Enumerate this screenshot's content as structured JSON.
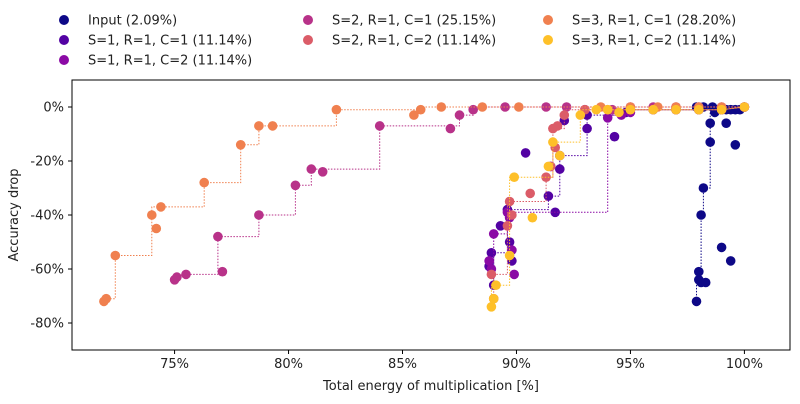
{
  "chart_data": {
    "type": "scatter",
    "xlabel": "Total energy of multiplication [%]",
    "ylabel": "Accuracy drop",
    "xlim": [
      70.5,
      102
    ],
    "ylim": [
      -90,
      10
    ],
    "x_ticks": [
      75,
      80,
      85,
      90,
      95,
      100
    ],
    "x_tick_labels": [
      "75%",
      "80%",
      "85%",
      "90%",
      "95%",
      "100%"
    ],
    "y_ticks": [
      0,
      -20,
      -40,
      -60,
      -80
    ],
    "y_tick_labels": [
      "0%",
      "-20%",
      "-40%",
      "-60%",
      "-80%"
    ],
    "grid": false,
    "legend_position": "top",
    "series": [
      {
        "name": "Input (2.09%)",
        "color": "#0d0887",
        "points": [
          [
            97.9,
            -72
          ],
          [
            98.0,
            -64
          ],
          [
            98.1,
            -65
          ],
          [
            98.3,
            -65
          ],
          [
            98.0,
            -61
          ],
          [
            98.1,
            -40
          ],
          [
            98.2,
            -30
          ],
          [
            98.5,
            -13
          ],
          [
            98.5,
            -6
          ],
          [
            99.0,
            -52
          ],
          [
            99.4,
            -57
          ],
          [
            99.2,
            -6
          ],
          [
            99.6,
            -14
          ],
          [
            98.7,
            -2
          ],
          [
            98.8,
            -1
          ],
          [
            99.0,
            -1
          ],
          [
            99.2,
            -1
          ],
          [
            99.4,
            -1
          ],
          [
            99.6,
            -1
          ],
          [
            99.8,
            -1
          ],
          [
            100.0,
            0
          ],
          [
            97.9,
            0
          ],
          [
            98.2,
            0
          ],
          [
            98.6,
            0
          ]
        ],
        "frontier": [
          [
            97.9,
            -72
          ],
          [
            97.9,
            -61
          ],
          [
            98.1,
            -61
          ],
          [
            98.1,
            -40
          ],
          [
            98.2,
            -40
          ],
          [
            98.2,
            -30
          ],
          [
            98.5,
            -30
          ],
          [
            98.5,
            -2
          ],
          [
            99.8,
            -2
          ],
          [
            99.8,
            0
          ],
          [
            100.0,
            0
          ]
        ]
      },
      {
        "name": "S=1, R=1, C=1 (11.14%)",
        "color": "#5302a3",
        "points": [
          [
            88.8,
            -59
          ],
          [
            88.9,
            -54
          ],
          [
            89.0,
            -66
          ],
          [
            89.3,
            -44
          ],
          [
            89.6,
            -38
          ],
          [
            89.7,
            -40
          ],
          [
            89.7,
            -50
          ],
          [
            89.8,
            -57
          ],
          [
            90.4,
            -17
          ],
          [
            91.4,
            -33
          ],
          [
            91.5,
            -22
          ],
          [
            91.7,
            -39
          ],
          [
            91.9,
            -23
          ],
          [
            91.9,
            -18
          ],
          [
            92.1,
            -5
          ],
          [
            93.1,
            -8
          ],
          [
            93.1,
            -3
          ],
          [
            94.3,
            -11
          ],
          [
            94.8,
            -2
          ],
          [
            95.0,
            -1
          ],
          [
            96.0,
            -1
          ],
          [
            97.0,
            -1
          ],
          [
            98.0,
            -1
          ],
          [
            99.0,
            -1
          ],
          [
            100.0,
            0
          ]
        ],
        "frontier": [
          [
            89.0,
            -66
          ],
          [
            89.0,
            -54
          ],
          [
            89.6,
            -54
          ],
          [
            89.6,
            -38
          ],
          [
            91.4,
            -38
          ],
          [
            91.4,
            -33
          ],
          [
            91.9,
            -33
          ],
          [
            91.9,
            -18
          ],
          [
            93.1,
            -18
          ],
          [
            93.1,
            -3
          ],
          [
            94.8,
            -3
          ],
          [
            94.8,
            -1
          ],
          [
            99.0,
            -1
          ],
          [
            100.0,
            0
          ]
        ]
      },
      {
        "name": "S=1, R=1, C=2 (11.14%)",
        "color": "#8b0aa5",
        "points": [
          [
            88.8,
            -57
          ],
          [
            88.9,
            -60
          ],
          [
            89.0,
            -47
          ],
          [
            89.6,
            -39
          ],
          [
            89.7,
            -41
          ],
          [
            89.8,
            -53
          ],
          [
            89.9,
            -62
          ],
          [
            94.0,
            -4
          ],
          [
            94.6,
            -3
          ],
          [
            95.0,
            -2
          ],
          [
            96.0,
            -1
          ],
          [
            97.0,
            -1
          ],
          [
            98.0,
            -1
          ],
          [
            99.0,
            -1
          ],
          [
            100.0,
            0
          ]
        ],
        "frontier": [
          [
            89.0,
            -60
          ],
          [
            89.0,
            -47
          ],
          [
            89.6,
            -47
          ],
          [
            89.6,
            -39
          ],
          [
            94.0,
            -39
          ],
          [
            94.0,
            -3
          ],
          [
            95.0,
            -3
          ],
          [
            95.0,
            -1
          ],
          [
            99.0,
            -1
          ],
          [
            100.0,
            0
          ]
        ]
      },
      {
        "name": "S=2, R=1, C=1 (25.15%)",
        "color": "#b83289",
        "points": [
          [
            75.0,
            -64
          ],
          [
            75.1,
            -63
          ],
          [
            75.5,
            -62
          ],
          [
            76.9,
            -48
          ],
          [
            77.1,
            -61
          ],
          [
            78.7,
            -40
          ],
          [
            80.3,
            -29
          ],
          [
            81.0,
            -23
          ],
          [
            81.5,
            -24
          ],
          [
            84.0,
            -7
          ],
          [
            87.1,
            -8
          ],
          [
            87.5,
            -3
          ],
          [
            88.1,
            -1
          ],
          [
            89.5,
            0
          ],
          [
            91.3,
            0
          ],
          [
            92.2,
            0
          ],
          [
            93.0,
            -1
          ],
          [
            94.2,
            -1
          ],
          [
            95.0,
            0
          ],
          [
            96.0,
            0
          ],
          [
            97.0,
            0
          ],
          [
            98.0,
            0
          ],
          [
            99.0,
            0
          ],
          [
            100.0,
            0
          ]
        ],
        "frontier": [
          [
            75.0,
            -64
          ],
          [
            75.0,
            -62
          ],
          [
            76.9,
            -62
          ],
          [
            76.9,
            -48
          ],
          [
            78.7,
            -48
          ],
          [
            78.7,
            -40
          ],
          [
            80.3,
            -40
          ],
          [
            80.3,
            -29
          ],
          [
            81.0,
            -29
          ],
          [
            81.0,
            -23
          ],
          [
            84.0,
            -23
          ],
          [
            84.0,
            -7
          ],
          [
            87.5,
            -7
          ],
          [
            87.5,
            -3
          ],
          [
            88.1,
            -3
          ],
          [
            88.1,
            0
          ],
          [
            100.0,
            0
          ]
        ]
      },
      {
        "name": "S=2, R=1, C=2 (11.14%)",
        "color": "#db5c68",
        "points": [
          [
            88.9,
            -62
          ],
          [
            89.0,
            -71
          ],
          [
            89.6,
            -44
          ],
          [
            89.7,
            -35
          ],
          [
            89.8,
            -40
          ],
          [
            90.6,
            -32
          ],
          [
            91.3,
            -26
          ],
          [
            91.5,
            -22
          ],
          [
            91.6,
            -8
          ],
          [
            91.7,
            -15
          ],
          [
            91.8,
            -7
          ],
          [
            92.1,
            -3
          ],
          [
            93.0,
            -1
          ],
          [
            94.0,
            -1
          ],
          [
            95.0,
            -1
          ],
          [
            96.0,
            -1
          ],
          [
            97.0,
            -1
          ],
          [
            98.0,
            -1
          ],
          [
            99.0,
            -1
          ],
          [
            100.0,
            0
          ]
        ],
        "frontier": [
          [
            89.0,
            -71
          ],
          [
            89.0,
            -62
          ],
          [
            89.6,
            -62
          ],
          [
            89.6,
            -35
          ],
          [
            91.3,
            -35
          ],
          [
            91.3,
            -26
          ],
          [
            91.6,
            -26
          ],
          [
            91.6,
            -8
          ],
          [
            92.1,
            -8
          ],
          [
            92.1,
            -1
          ],
          [
            99.0,
            -1
          ],
          [
            100.0,
            0
          ]
        ]
      },
      {
        "name": "S=3, R=1, C=1 (28.20%)",
        "color": "#f0804f",
        "points": [
          [
            71.9,
            -72
          ],
          [
            72.0,
            -71
          ],
          [
            72.4,
            -55
          ],
          [
            74.0,
            -40
          ],
          [
            74.2,
            -45
          ],
          [
            74.4,
            -37
          ],
          [
            76.3,
            -28
          ],
          [
            77.9,
            -14
          ],
          [
            78.7,
            -7
          ],
          [
            79.3,
            -7
          ],
          [
            82.1,
            -1
          ],
          [
            85.5,
            -3
          ],
          [
            85.8,
            -1
          ],
          [
            86.7,
            0
          ],
          [
            88.5,
            0
          ],
          [
            90.1,
            0
          ],
          [
            93.7,
            0
          ],
          [
            95.0,
            0
          ],
          [
            96.2,
            0
          ],
          [
            97.0,
            0
          ],
          [
            98.0,
            0
          ],
          [
            99.0,
            0
          ],
          [
            100.0,
            0
          ]
        ],
        "frontier": [
          [
            71.9,
            -72
          ],
          [
            71.9,
            -71
          ],
          [
            72.4,
            -71
          ],
          [
            72.4,
            -55
          ],
          [
            74.0,
            -55
          ],
          [
            74.0,
            -37
          ],
          [
            76.3,
            -37
          ],
          [
            76.3,
            -28
          ],
          [
            77.9,
            -28
          ],
          [
            77.9,
            -14
          ],
          [
            78.7,
            -14
          ],
          [
            78.7,
            -7
          ],
          [
            82.1,
            -7
          ],
          [
            82.1,
            -1
          ],
          [
            85.8,
            -1
          ],
          [
            85.8,
            0
          ],
          [
            100.0,
            0
          ]
        ]
      },
      {
        "name": "S=3, R=1, C=2 (11.14%)",
        "color": "#fec029",
        "points": [
          [
            88.9,
            -74
          ],
          [
            89.0,
            -71
          ],
          [
            89.1,
            -66
          ],
          [
            89.7,
            -55
          ],
          [
            89.9,
            -26
          ],
          [
            90.7,
            -41
          ],
          [
            91.4,
            -22
          ],
          [
            91.6,
            -13
          ],
          [
            91.9,
            -18
          ],
          [
            92.8,
            -3
          ],
          [
            93.5,
            -1
          ],
          [
            94.0,
            -1
          ],
          [
            94.5,
            -2
          ],
          [
            95.0,
            -1
          ],
          [
            96.0,
            -1
          ],
          [
            97.0,
            -1
          ],
          [
            98.0,
            -1
          ],
          [
            99.0,
            -1
          ],
          [
            100.0,
            0
          ]
        ],
        "frontier": [
          [
            88.9,
            -74
          ],
          [
            88.9,
            -66
          ],
          [
            89.7,
            -66
          ],
          [
            89.7,
            -26
          ],
          [
            91.6,
            -26
          ],
          [
            91.6,
            -13
          ],
          [
            92.8,
            -13
          ],
          [
            92.8,
            -1
          ],
          [
            99.0,
            -1
          ],
          [
            100.0,
            0
          ]
        ]
      }
    ]
  }
}
